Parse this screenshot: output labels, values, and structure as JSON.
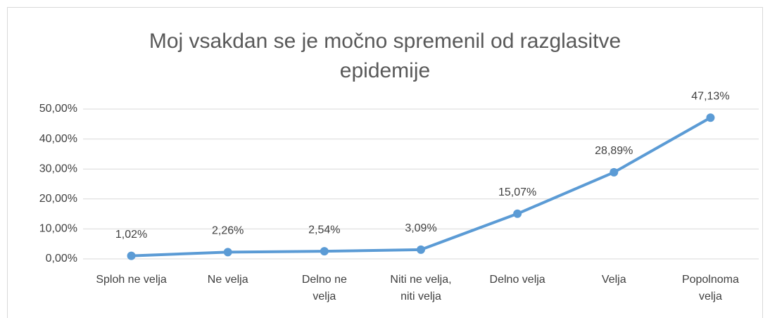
{
  "chart_data": {
    "type": "line",
    "title": "Moj vsakdan se je močno spremenil od razglasitve epidemije",
    "categories": [
      "Sploh ne velja",
      "Ne velja",
      "Delno ne velja",
      "Niti ne velja, niti velja",
      "Delno velja",
      "Velja",
      "Popolnoma velja"
    ],
    "values": [
      1.02,
      2.26,
      2.54,
      3.09,
      15.07,
      28.89,
      47.13
    ],
    "value_labels": [
      "1,02%",
      "2,26%",
      "2,54%",
      "3,09%",
      "15,07%",
      "28,89%",
      "47,13%"
    ],
    "color": "#5b9bd5",
    "ylim": [
      0,
      50
    ],
    "yticks": [
      {
        "value": 0,
        "label": "0,00%"
      },
      {
        "value": 10,
        "label": "10,00%"
      },
      {
        "value": 20,
        "label": "20,00%"
      },
      {
        "value": 30,
        "label": "30,00%"
      },
      {
        "value": 40,
        "label": "40,00%"
      },
      {
        "value": 50,
        "label": "50,00%"
      }
    ],
    "grid": true
  }
}
